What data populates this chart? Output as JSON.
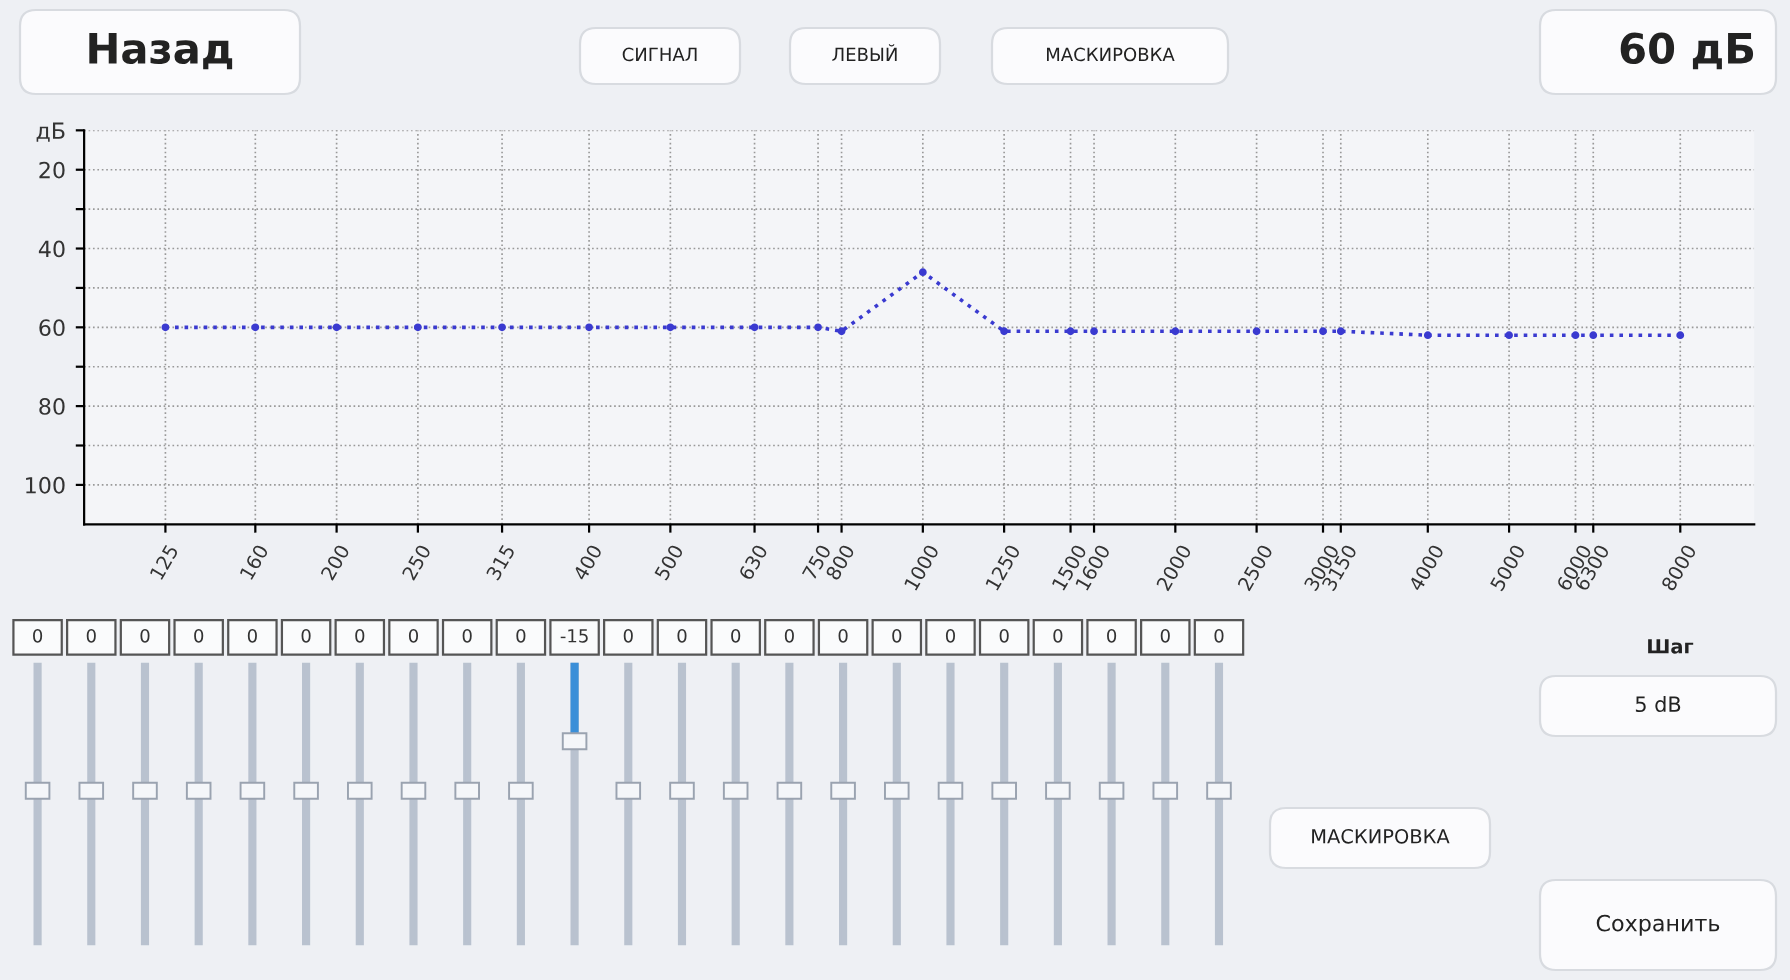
{
  "chart_data": [
    {
      "type": "line",
      "ylabel": null,
      "x": [
        125,
        160,
        200,
        250,
        315,
        400,
        500,
        630,
        750,
        800,
        1000,
        1250,
        1500,
        1600,
        2000,
        2500,
        3000,
        3150,
        4000,
        5000,
        6000,
        6300,
        8000
      ],
      "series": [
        {
          "color": "#3a3ad0",
          "values": [
            60,
            60,
            60,
            60,
            60,
            60,
            60,
            60,
            60,
            61,
            46,
            61,
            61,
            61,
            61,
            61,
            61,
            61,
            62,
            62,
            62,
            62,
            62
          ]
        }
      ],
      "log": "x",
      "xlim": [
        100,
        9800
      ],
      "xticks": [
        125,
        160,
        200,
        250,
        315,
        400,
        500,
        630,
        750,
        800,
        1000,
        1250,
        1500,
        1600,
        2000,
        2500,
        3000,
        3150,
        4000,
        5000,
        6000,
        6300,
        8000
      ],
      "ylim": [
        110,
        10
      ],
      "yticks": [
        {
          "value": 10,
          "label": "дБ"
        },
        20,
        {
          "value": 30,
          "label": null
        },
        40,
        {
          "value": 50,
          "label": null
        },
        60,
        {
          "value": 70,
          "label": null
        },
        80,
        {
          "value": 90,
          "label": null
        },
        100
      ],
      "grid": true,
      "marker": "circle",
      "line_style": "dotted"
    },
    {
      "type": "other",
      "categories": [
        null,
        null,
        null,
        null,
        null,
        null,
        null,
        null,
        null,
        null,
        null,
        null,
        null,
        null,
        null,
        null,
        null,
        null,
        null,
        null,
        null,
        null,
        null
      ],
      "values": [
        0,
        0,
        0,
        0,
        0,
        0,
        0,
        0,
        0,
        0,
        -15,
        0,
        0,
        0,
        0,
        0,
        0,
        0,
        0,
        0,
        0,
        0,
        0
      ],
      "data_labels": true,
      "color": "#3a8fd8"
    },
    {
      "type": "other",
      "annotations": [
        "Назад",
        "СИГНАЛ",
        "ЛЕВЫЙ",
        "МАСКИРОВКА",
        "60 дБ",
        "Шаг",
        "5 dB",
        "МАСКИРОВКА",
        "Сохранить"
      ]
    }
  ]
}
